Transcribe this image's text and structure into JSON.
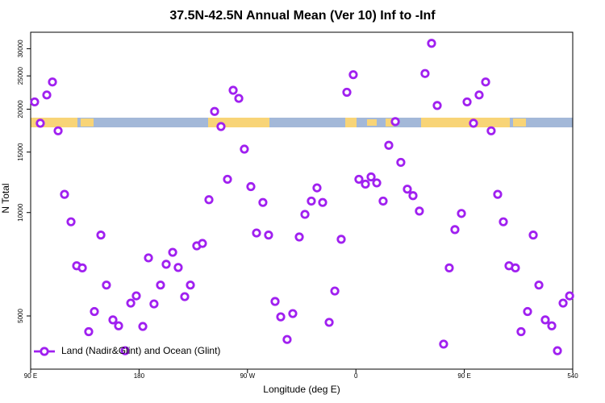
{
  "chart_data": {
    "type": "scatter",
    "title": "37.5N-42.5N Annual Mean (Ver 10)   Inf to -Inf",
    "x_label": "Longitude (deg E)",
    "y_label": "N Total",
    "xlim": [
      90,
      540
    ],
    "xticks": [
      {
        "value": 90,
        "label": "90 E"
      },
      180,
      {
        "value": 270,
        "label": "90 W"
      },
      {
        "value": 360,
        "label": "0"
      },
      {
        "value": 450,
        "label": "90 E"
      },
      540
    ],
    "ylim": [
      3500,
      33500
    ],
    "yticks": [
      5000,
      10000,
      15000,
      20000,
      25000,
      30000
    ],
    "yscale": "log",
    "legend": "bottom-left",
    "series": [
      {
        "name": "Land (Nadir&Glint) and Ocean (Glint)",
        "color": "#a020f0",
        "x": [
          93.3,
          98.0,
          103.4,
          108.1,
          112.8,
          118.1,
          123.5,
          128.2,
          132.9,
          138.2,
          142.9,
          148.3,
          152.9,
          158.3,
          163.0,
          168.4,
          173.1,
          177.7,
          183.1,
          187.8,
          192.4,
          197.8,
          202.5,
          207.9,
          212.5,
          217.9,
          222.6,
          227.9,
          232.6,
          238.0,
          242.7,
          248.0,
          253.4,
          258.1,
          262.8,
          267.4,
          272.8,
          277.5,
          282.8,
          287.5,
          292.9,
          297.6,
          302.9,
          307.6,
          313.0,
          317.7,
          323.0,
          327.7,
          332.4,
          337.8,
          342.5,
          347.8,
          352.5,
          357.8,
          362.5,
          367.9,
          372.6,
          377.3,
          382.6,
          387.3,
          392.7,
          397.3,
          402.7,
          407.4,
          412.7,
          417.4,
          422.8,
          427.5,
          432.8,
          437.5,
          442.2,
          447.6,
          452.3,
          457.6,
          462.3,
          467.7,
          472.3,
          477.7,
          482.4,
          487.1,
          492.4,
          497.1,
          502.5,
          507.2,
          511.9,
          517.2,
          522.6,
          527.3,
          532.0,
          537.4
        ],
        "values": [
          21000,
          18200,
          22000,
          24000,
          17300,
          11300,
          9400,
          7000,
          6900,
          4500,
          5150,
          8600,
          6150,
          4870,
          4680,
          3960,
          5450,
          5720,
          4660,
          7380,
          5420,
          6150,
          7070,
          7660,
          6920,
          5690,
          6150,
          8000,
          8130,
          10900,
          19700,
          17800,
          12500,
          22700,
          21500,
          15300,
          11900,
          8720,
          10700,
          8600,
          5510,
          4970,
          4270,
          5080,
          8490,
          9880,
          10800,
          11800,
          10700,
          4790,
          5910,
          8360,
          22400,
          25200,
          12500,
          12100,
          12700,
          12200,
          10800,
          15700,
          18400,
          14000,
          11700,
          11200,
          10100,
          25400,
          31100,
          20500,
          4140,
          6900,
          8920,
          9940,
          21000,
          18200,
          22000,
          24000,
          17300,
          11300,
          9400,
          7000,
          6900,
          4500,
          5150,
          8600,
          6150,
          4870,
          4680,
          3960,
          5450,
          5720
        ]
      }
    ]
  }
}
